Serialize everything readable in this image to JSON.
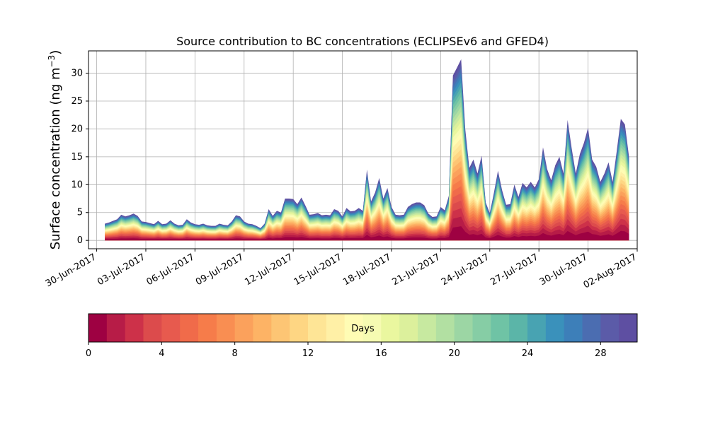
{
  "chart_data": {
    "type": "area",
    "title": "Source contribution to BC concentrations (ECLIPSEv6 and GFED4)",
    "ylabel_main": "Surface concentration (ng m",
    "ylabel_unit_exp": "−3",
    "ylabel_close": ")",
    "stacking": "cumulative by source age (days 0 to 30)",
    "grid": true,
    "ylim": [
      -1.5,
      34
    ],
    "y_ticks": [
      "0",
      "5",
      "10",
      "15",
      "20",
      "25",
      "30"
    ],
    "x_tick_labels": [
      "30-Jun-2017",
      "03-Jul-2017",
      "06-Jul-2017",
      "09-Jul-2017",
      "12-Jul-2017",
      "15-Jul-2017",
      "18-Jul-2017",
      "21-Jul-2017",
      "24-Jul-2017",
      "27-Jul-2017",
      "30-Jul-2017",
      "02-Aug-2017"
    ],
    "x_range_days": [
      0.0,
      33.5
    ],
    "series_time_days": [
      1.0,
      1.25,
      1.5,
      1.75,
      2.0,
      2.25,
      2.5,
      2.75,
      3.0,
      3.25,
      3.5,
      3.75,
      4.0,
      4.25,
      4.5,
      4.75,
      5.0,
      5.25,
      5.5,
      5.75,
      6.0,
      6.25,
      6.5,
      6.75,
      7.0,
      7.25,
      7.5,
      7.75,
      8.0,
      8.25,
      8.5,
      8.75,
      9.0,
      9.25,
      9.5,
      9.75,
      10.0,
      10.25,
      10.5,
      10.75,
      11.0,
      11.25,
      11.5,
      11.75,
      12.0,
      12.25,
      12.5,
      12.75,
      13.0,
      13.25,
      13.5,
      13.75,
      14.0,
      14.25,
      14.5,
      14.75,
      15.0,
      15.25,
      15.5,
      15.75,
      16.0,
      16.25,
      16.5,
      16.75,
      17.0,
      17.25,
      17.5,
      17.75,
      18.0,
      18.25,
      18.5,
      18.75,
      19.0,
      19.25,
      19.5,
      19.75,
      20.0,
      20.25,
      20.5,
      20.75,
      21.0,
      21.25,
      21.5,
      21.75,
      22.0,
      22.25,
      22.5,
      22.75,
      23.0,
      23.25,
      23.5,
      23.75,
      24.0,
      24.25,
      24.5,
      24.75,
      25.0,
      25.25,
      25.5,
      25.75,
      26.0,
      26.25,
      26.5,
      26.75,
      27.0,
      27.25,
      27.5,
      27.75,
      28.0,
      28.25,
      28.5,
      28.75,
      29.0,
      29.25,
      29.5,
      29.75,
      30.0,
      30.25,
      30.5,
      30.75,
      31.0,
      31.25,
      31.5,
      31.75,
      32.0,
      32.25,
      32.5,
      32.75,
      33.0
    ],
    "total_concentration": [
      3.0,
      3.2,
      3.5,
      3.8,
      4.6,
      4.3,
      4.5,
      4.8,
      4.4,
      3.4,
      3.3,
      3.1,
      2.9,
      3.5,
      2.9,
      3.0,
      3.6,
      3.0,
      2.7,
      2.8,
      3.8,
      3.2,
      2.9,
      2.8,
      3.0,
      2.7,
      2.6,
      2.6,
      3.0,
      2.8,
      2.7,
      3.4,
      4.5,
      4.3,
      3.4,
      3.0,
      2.9,
      2.6,
      2.2,
      3.0,
      5.6,
      4.4,
      5.3,
      5.0,
      7.5,
      7.5,
      7.4,
      6.5,
      7.7,
      6.2,
      4.6,
      4.7,
      4.9,
      4.5,
      4.6,
      4.5,
      5.6,
      5.3,
      4.3,
      5.8,
      5.2,
      5.3,
      5.8,
      5.3,
      12.7,
      7.0,
      8.6,
      11.2,
      7.5,
      9.4,
      6.0,
      4.6,
      4.5,
      4.6,
      6.0,
      6.5,
      6.8,
      6.8,
      6.3,
      4.8,
      4.2,
      4.3,
      6.0,
      5.4,
      8.0,
      29.6,
      31.0,
      32.5,
      20.0,
      13.0,
      14.5,
      12.0,
      15.2,
      6.8,
      4.9,
      8.5,
      12.5,
      9.0,
      6.4,
      6.5,
      10.0,
      7.8,
      10.3,
      9.5,
      10.5,
      9.5,
      11.0,
      16.7,
      12.8,
      10.8,
      13.5,
      15.0,
      12.0,
      21.6,
      16.5,
      12.0,
      15.5,
      17.5,
      20.2,
      14.5,
      13.2,
      10.5,
      12.0,
      14.0,
      10.5,
      16.0,
      21.8,
      20.8,
      15.0
    ],
    "colorbar": {
      "label": "Days",
      "ticks": [
        "0",
        "4",
        "8",
        "12",
        "16",
        "20",
        "24",
        "28"
      ],
      "range": [
        0,
        30
      ],
      "colors": [
        "#9e0142",
        "#b71c47",
        "#cd3149",
        "#dc4b4c",
        "#e75a4e",
        "#f06b4a",
        "#f67c4a",
        "#f98e52",
        "#fba15c",
        "#fdb365",
        "#fdc574",
        "#fed683",
        "#fee596",
        "#fff0a6",
        "#fffcb4",
        "#f6fbb2",
        "#eaf79f",
        "#dcf09c",
        "#c7e9a0",
        "#b2e0a2",
        "#9cd6a4",
        "#86cda5",
        "#6fc3a5",
        "#5bb5a8",
        "#48a3b2",
        "#3a91bb",
        "#3d7fb9",
        "#4b6db1",
        "#5b5ba8",
        "#5e4fa2"
      ]
    }
  }
}
